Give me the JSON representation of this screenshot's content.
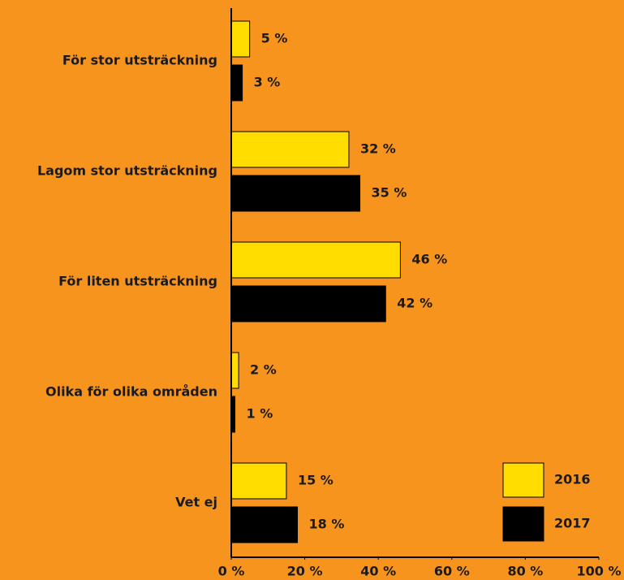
{
  "chart_data": {
    "type": "barh",
    "categories": [
      "För stor utsträckning",
      "Lagom stor utsträckning",
      "För liten utsträckning",
      "Olika för olika områden",
      "Vet ej"
    ],
    "series": [
      {
        "name": "2016",
        "color": "#FFDD00",
        "values": [
          5,
          32,
          46,
          2,
          15
        ],
        "value_labels": [
          "5 %",
          "32 %",
          "46 %",
          "2 %",
          "15 %"
        ]
      },
      {
        "name": "2017",
        "color": "#000000",
        "values": [
          3,
          35,
          42,
          1,
          18
        ],
        "value_labels": [
          "3 %",
          "35 %",
          "42 %",
          "1 %",
          "18 %"
        ]
      }
    ],
    "xlim": [
      0,
      100
    ],
    "xticks": [
      {
        "value": 0,
        "label": "0 %"
      },
      {
        "value": 20,
        "label": "20 %"
      },
      {
        "value": 40,
        "label": "40 %"
      },
      {
        "value": 60,
        "label": "60 %"
      },
      {
        "value": 80,
        "label": "80 %"
      },
      {
        "value": 100,
        "label": "100 %"
      }
    ],
    "grid": false,
    "legend": "bottom-right"
  }
}
